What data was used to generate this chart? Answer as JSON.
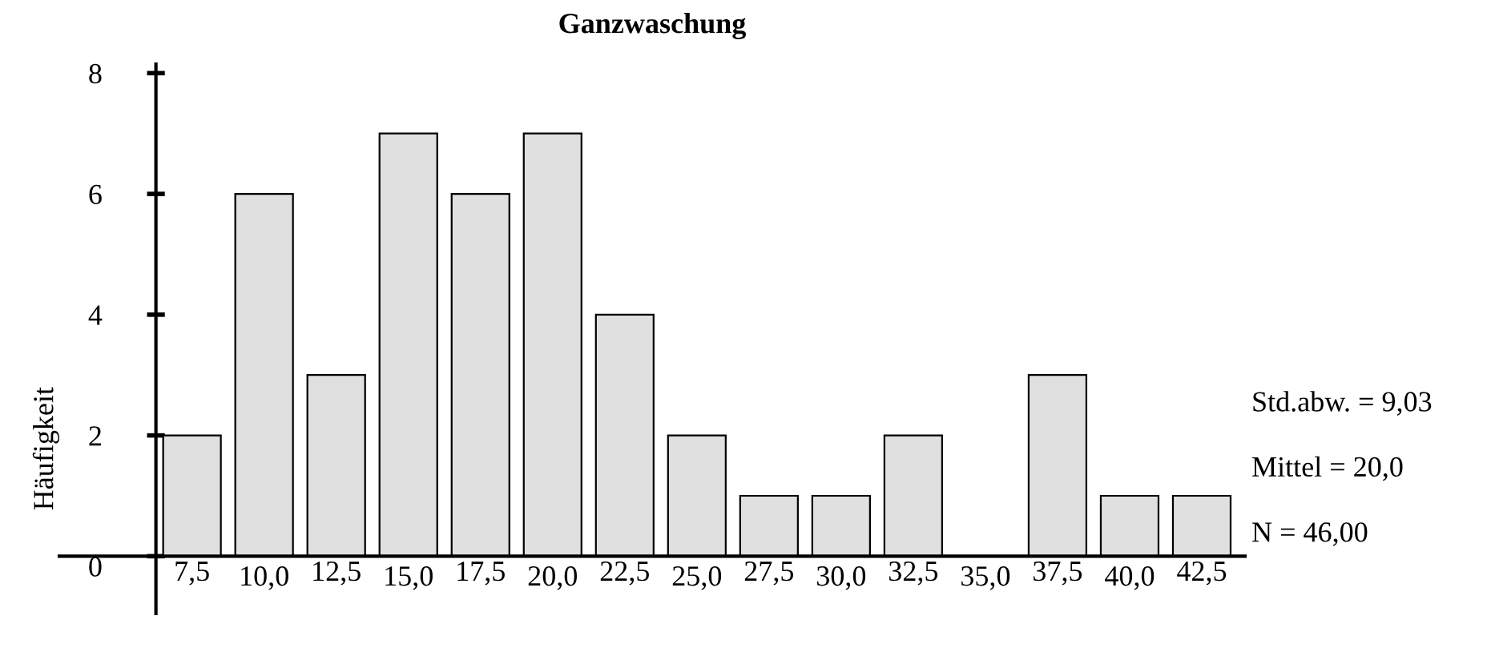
{
  "chart_data": {
    "type": "histogram",
    "title": "Ganzwaschung",
    "ylabel": "Häufigkeit",
    "bins": [
      6.25,
      8.75,
      11.25,
      13.75,
      16.25,
      18.75,
      21.25,
      23.75,
      26.25,
      28.75,
      31.25,
      33.75,
      36.25,
      38.75,
      41.25,
      43.75
    ],
    "values": [
      2,
      6,
      3,
      7,
      6,
      7,
      4,
      2,
      1,
      1,
      2,
      0,
      3,
      1,
      1
    ],
    "color": "#e0e0e0",
    "xlim": [
      2.9,
      44
    ],
    "xticks": [
      {
        "value": 7.5,
        "label": "7,5"
      },
      {
        "value": 10,
        "label": "10,0"
      },
      {
        "value": 12.5,
        "label": "12,5"
      },
      {
        "value": 15,
        "label": "15,0"
      },
      {
        "value": 17.5,
        "label": "17,5"
      },
      {
        "value": 20,
        "label": "20,0"
      },
      {
        "value": 22.5,
        "label": "22,5"
      },
      {
        "value": 25,
        "label": "25,0"
      },
      {
        "value": 27.5,
        "label": "27,5"
      },
      {
        "value": 30,
        "label": "30,0"
      },
      {
        "value": 32.5,
        "label": "32,5"
      },
      {
        "value": 35,
        "label": "35,0"
      },
      {
        "value": 37.5,
        "label": "37,5"
      },
      {
        "value": 40,
        "label": "40,0"
      },
      {
        "value": 42.5,
        "label": "42,5"
      }
    ],
    "ylim": [
      -0.95,
      8.15
    ],
    "yticks": [
      0,
      2,
      4,
      6,
      8
    ],
    "grid": false,
    "legend": false,
    "annotations": [
      "Std.abw. = 9,03",
      "Mittel = 20,0",
      "N = 46,00"
    ]
  }
}
